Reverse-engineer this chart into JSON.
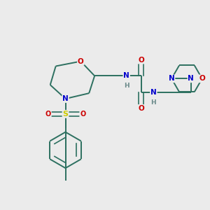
{
  "bg_color": "#ebebeb",
  "bond_color": "#2d7060",
  "atom_colors": {
    "O": "#cc0000",
    "N": "#0000cc",
    "S": "#cccc00",
    "H": "#6a8a8a",
    "C": "#2d7060"
  },
  "figsize": [
    3.0,
    3.0
  ],
  "dpi": 100
}
